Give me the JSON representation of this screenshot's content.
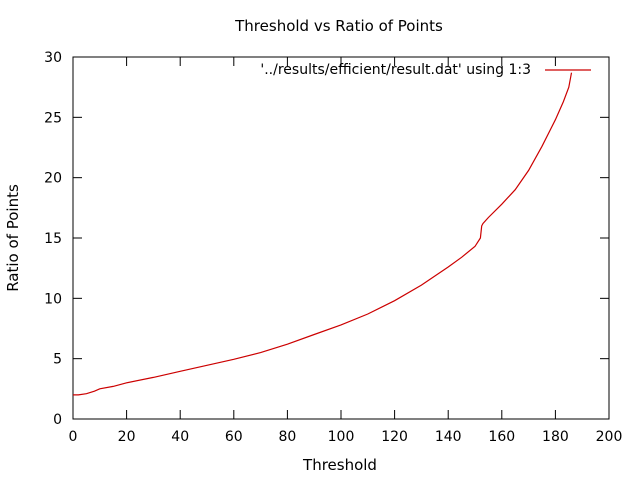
{
  "chart_data": {
    "type": "line",
    "title": "Threshold vs Ratio of Points",
    "xlabel": "Threshold",
    "ylabel": "Ratio of Points",
    "xlim": [
      0,
      200
    ],
    "ylim": [
      0,
      30
    ],
    "xticks": [
      "0",
      "20",
      "40",
      "60",
      "80",
      "100",
      "120",
      "140",
      "160",
      "180",
      "200"
    ],
    "yticks": [
      "0",
      "5",
      "10",
      "15",
      "20",
      "25",
      "30"
    ],
    "grid": false,
    "legend_position": "top-right",
    "series": [
      {
        "name": "'../results/efficient/result.dat' using 1:3",
        "color": "#cc0000",
        "x": [
          0,
          2,
          5,
          8,
          10,
          15,
          20,
          30,
          40,
          50,
          60,
          70,
          80,
          90,
          100,
          110,
          120,
          130,
          140,
          145,
          150,
          152,
          152.5,
          153,
          155,
          160,
          165,
          170,
          175,
          180,
          183,
          185,
          186
        ],
        "y": [
          2.0,
          2.0,
          2.1,
          2.3,
          2.5,
          2.7,
          3.0,
          3.45,
          3.95,
          4.45,
          4.95,
          5.5,
          6.2,
          7.0,
          7.8,
          8.7,
          9.8,
          11.1,
          12.6,
          13.4,
          14.3,
          15.0,
          16.0,
          16.2,
          16.7,
          17.8,
          19.0,
          20.6,
          22.6,
          24.8,
          26.3,
          27.5,
          28.7
        ]
      }
    ]
  }
}
